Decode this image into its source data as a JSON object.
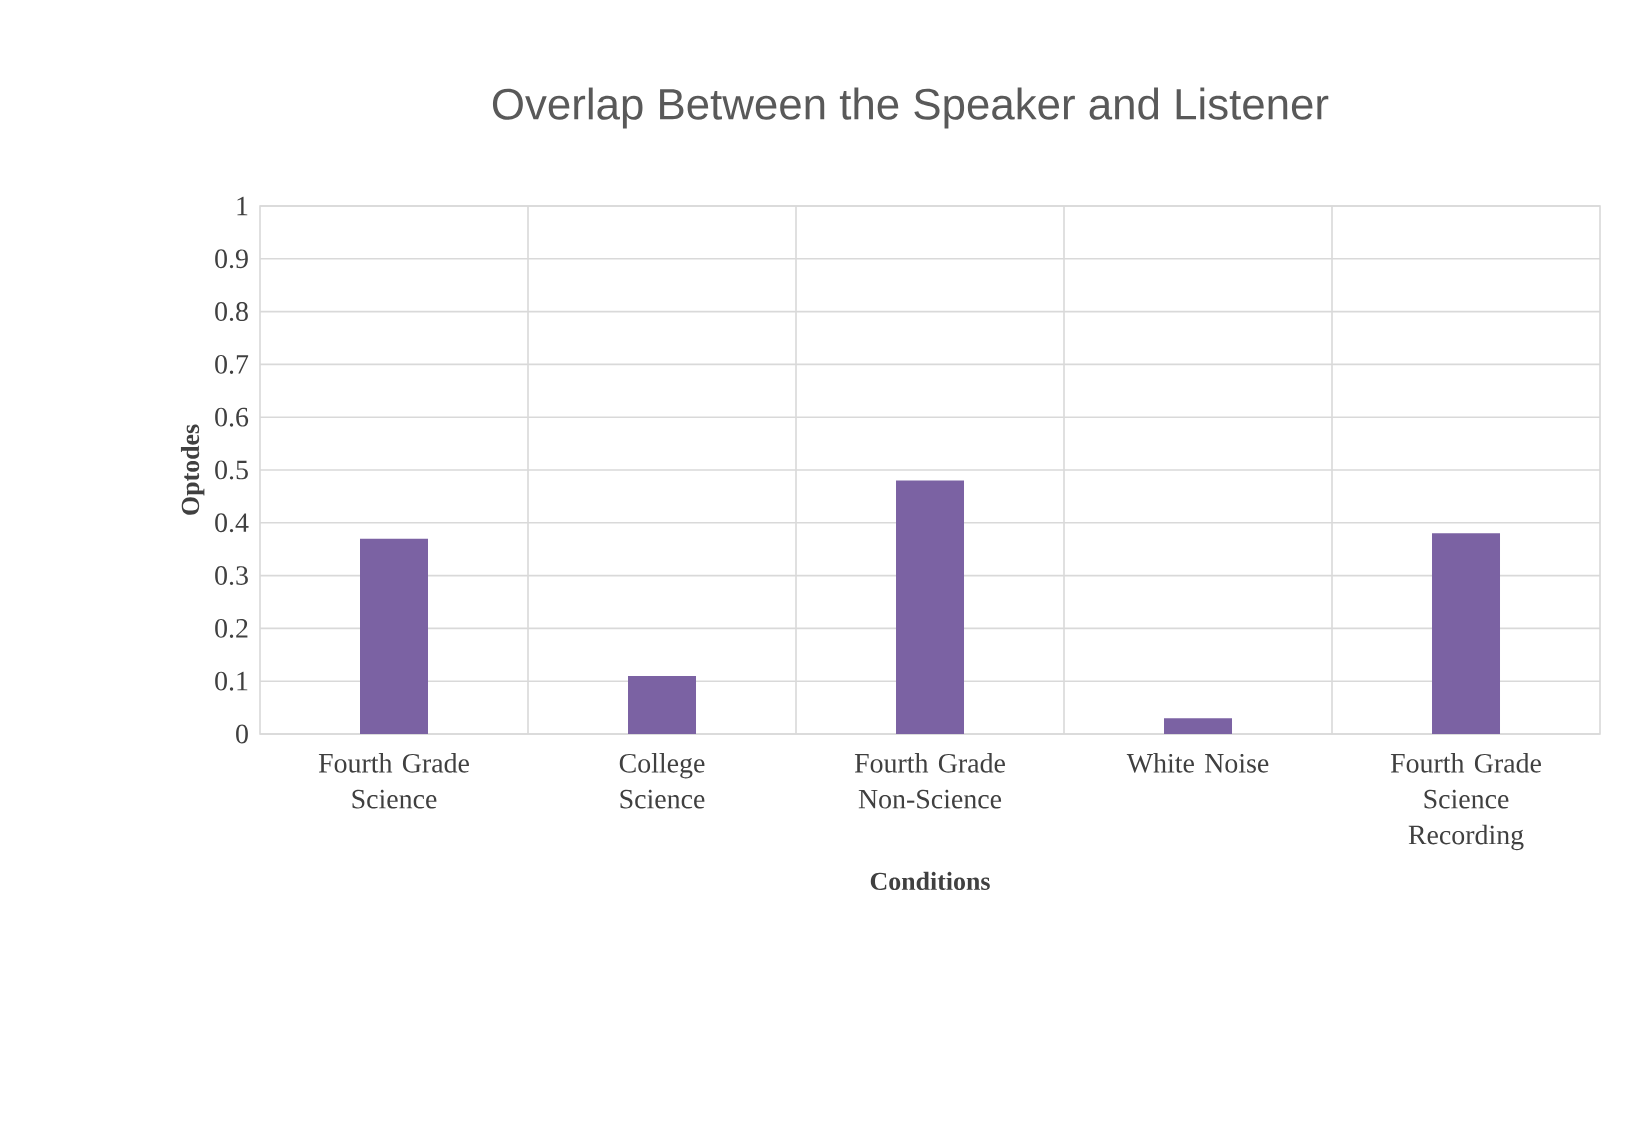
{
  "chart_data": {
    "type": "bar",
    "title": "Overlap Between the Speaker and Listener",
    "xlabel": "Conditions",
    "ylabel": "Optodes",
    "categories": [
      "Fourth Grade Science",
      "College Science",
      "Fourth Grade Non-Science",
      "White Noise",
      "Fourth Grade Science Recording"
    ],
    "values": [
      0.37,
      0.11,
      0.48,
      0.03,
      0.38
    ],
    "color": "#7b62a3",
    "ylim": [
      0,
      1
    ],
    "yticks": [
      0,
      0.1,
      0.2,
      0.3,
      0.4,
      0.5,
      0.6,
      0.7,
      0.8,
      0.9,
      1
    ],
    "grid": true
  }
}
